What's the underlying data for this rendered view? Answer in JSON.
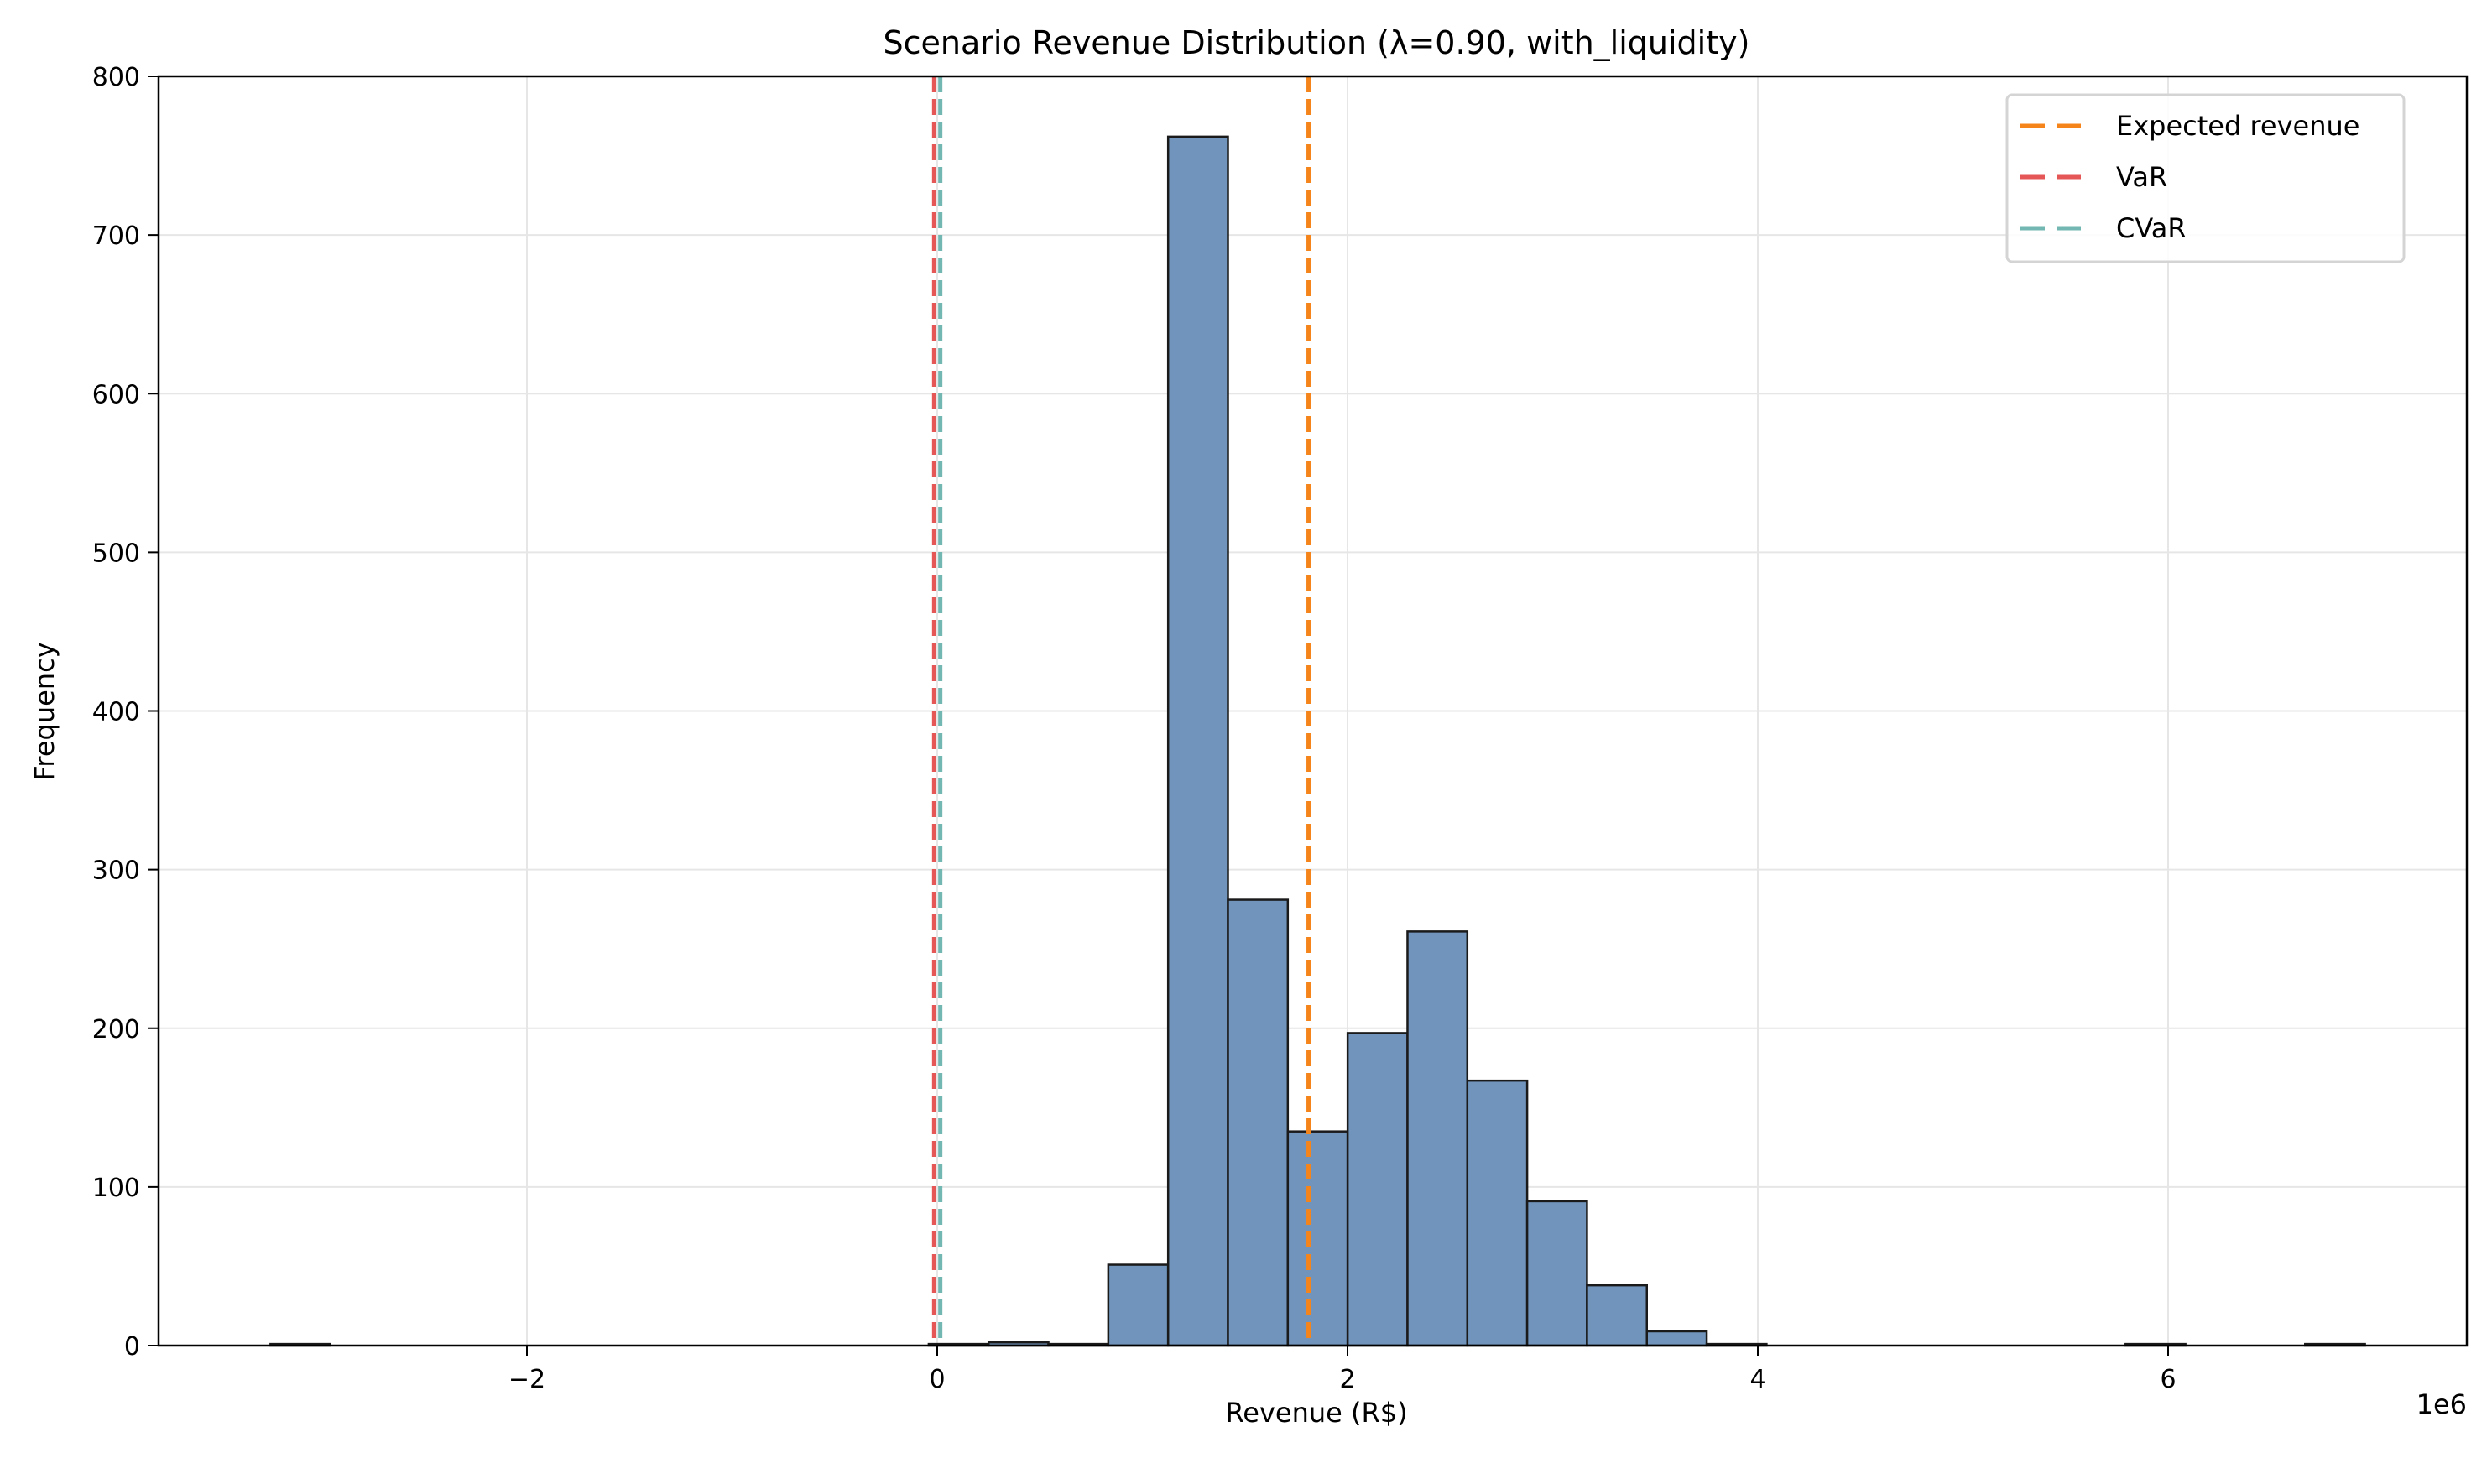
{
  "chart_data": {
    "type": "bar",
    "title": "Scenario Revenue Distribution (λ=0.90, with_liquidity)",
    "xlabel": "Revenue (R$)",
    "ylabel": "Frequency",
    "x_offset_label": "1e6",
    "xlim": [
      -3.55,
      7.35
    ],
    "ylim": [
      0,
      800
    ],
    "xticks": [
      -2,
      0,
      2,
      4,
      6
    ],
    "xtick_labels": [
      "−2",
      "0",
      "2",
      "4",
      "6"
    ],
    "yticks": [
      0,
      100,
      200,
      300,
      400,
      500,
      600,
      700,
      800
    ],
    "grid": true,
    "legend_position": "top-right",
    "histogram": {
      "bin_start": -3.25,
      "bin_width": 0.2917,
      "counts": [
        1,
        0,
        0,
        0,
        0,
        0,
        0,
        0,
        0,
        0,
        0,
        1,
        2,
        1,
        51,
        762,
        281,
        135,
        197,
        261,
        167,
        91,
        38,
        9,
        1,
        0,
        0,
        0,
        0,
        0,
        0,
        1,
        0,
        0,
        1
      ],
      "color": "#7094bb",
      "edge_color": "#1a1a1a"
    },
    "vlines": [
      {
        "name": "Expected revenue",
        "x": 1.81,
        "color": "#f5851b"
      },
      {
        "name": "VaR",
        "x": -0.015,
        "color": "#e45756"
      },
      {
        "name": "CVaR",
        "x": 0.015,
        "color": "#72b7b2"
      }
    ]
  }
}
